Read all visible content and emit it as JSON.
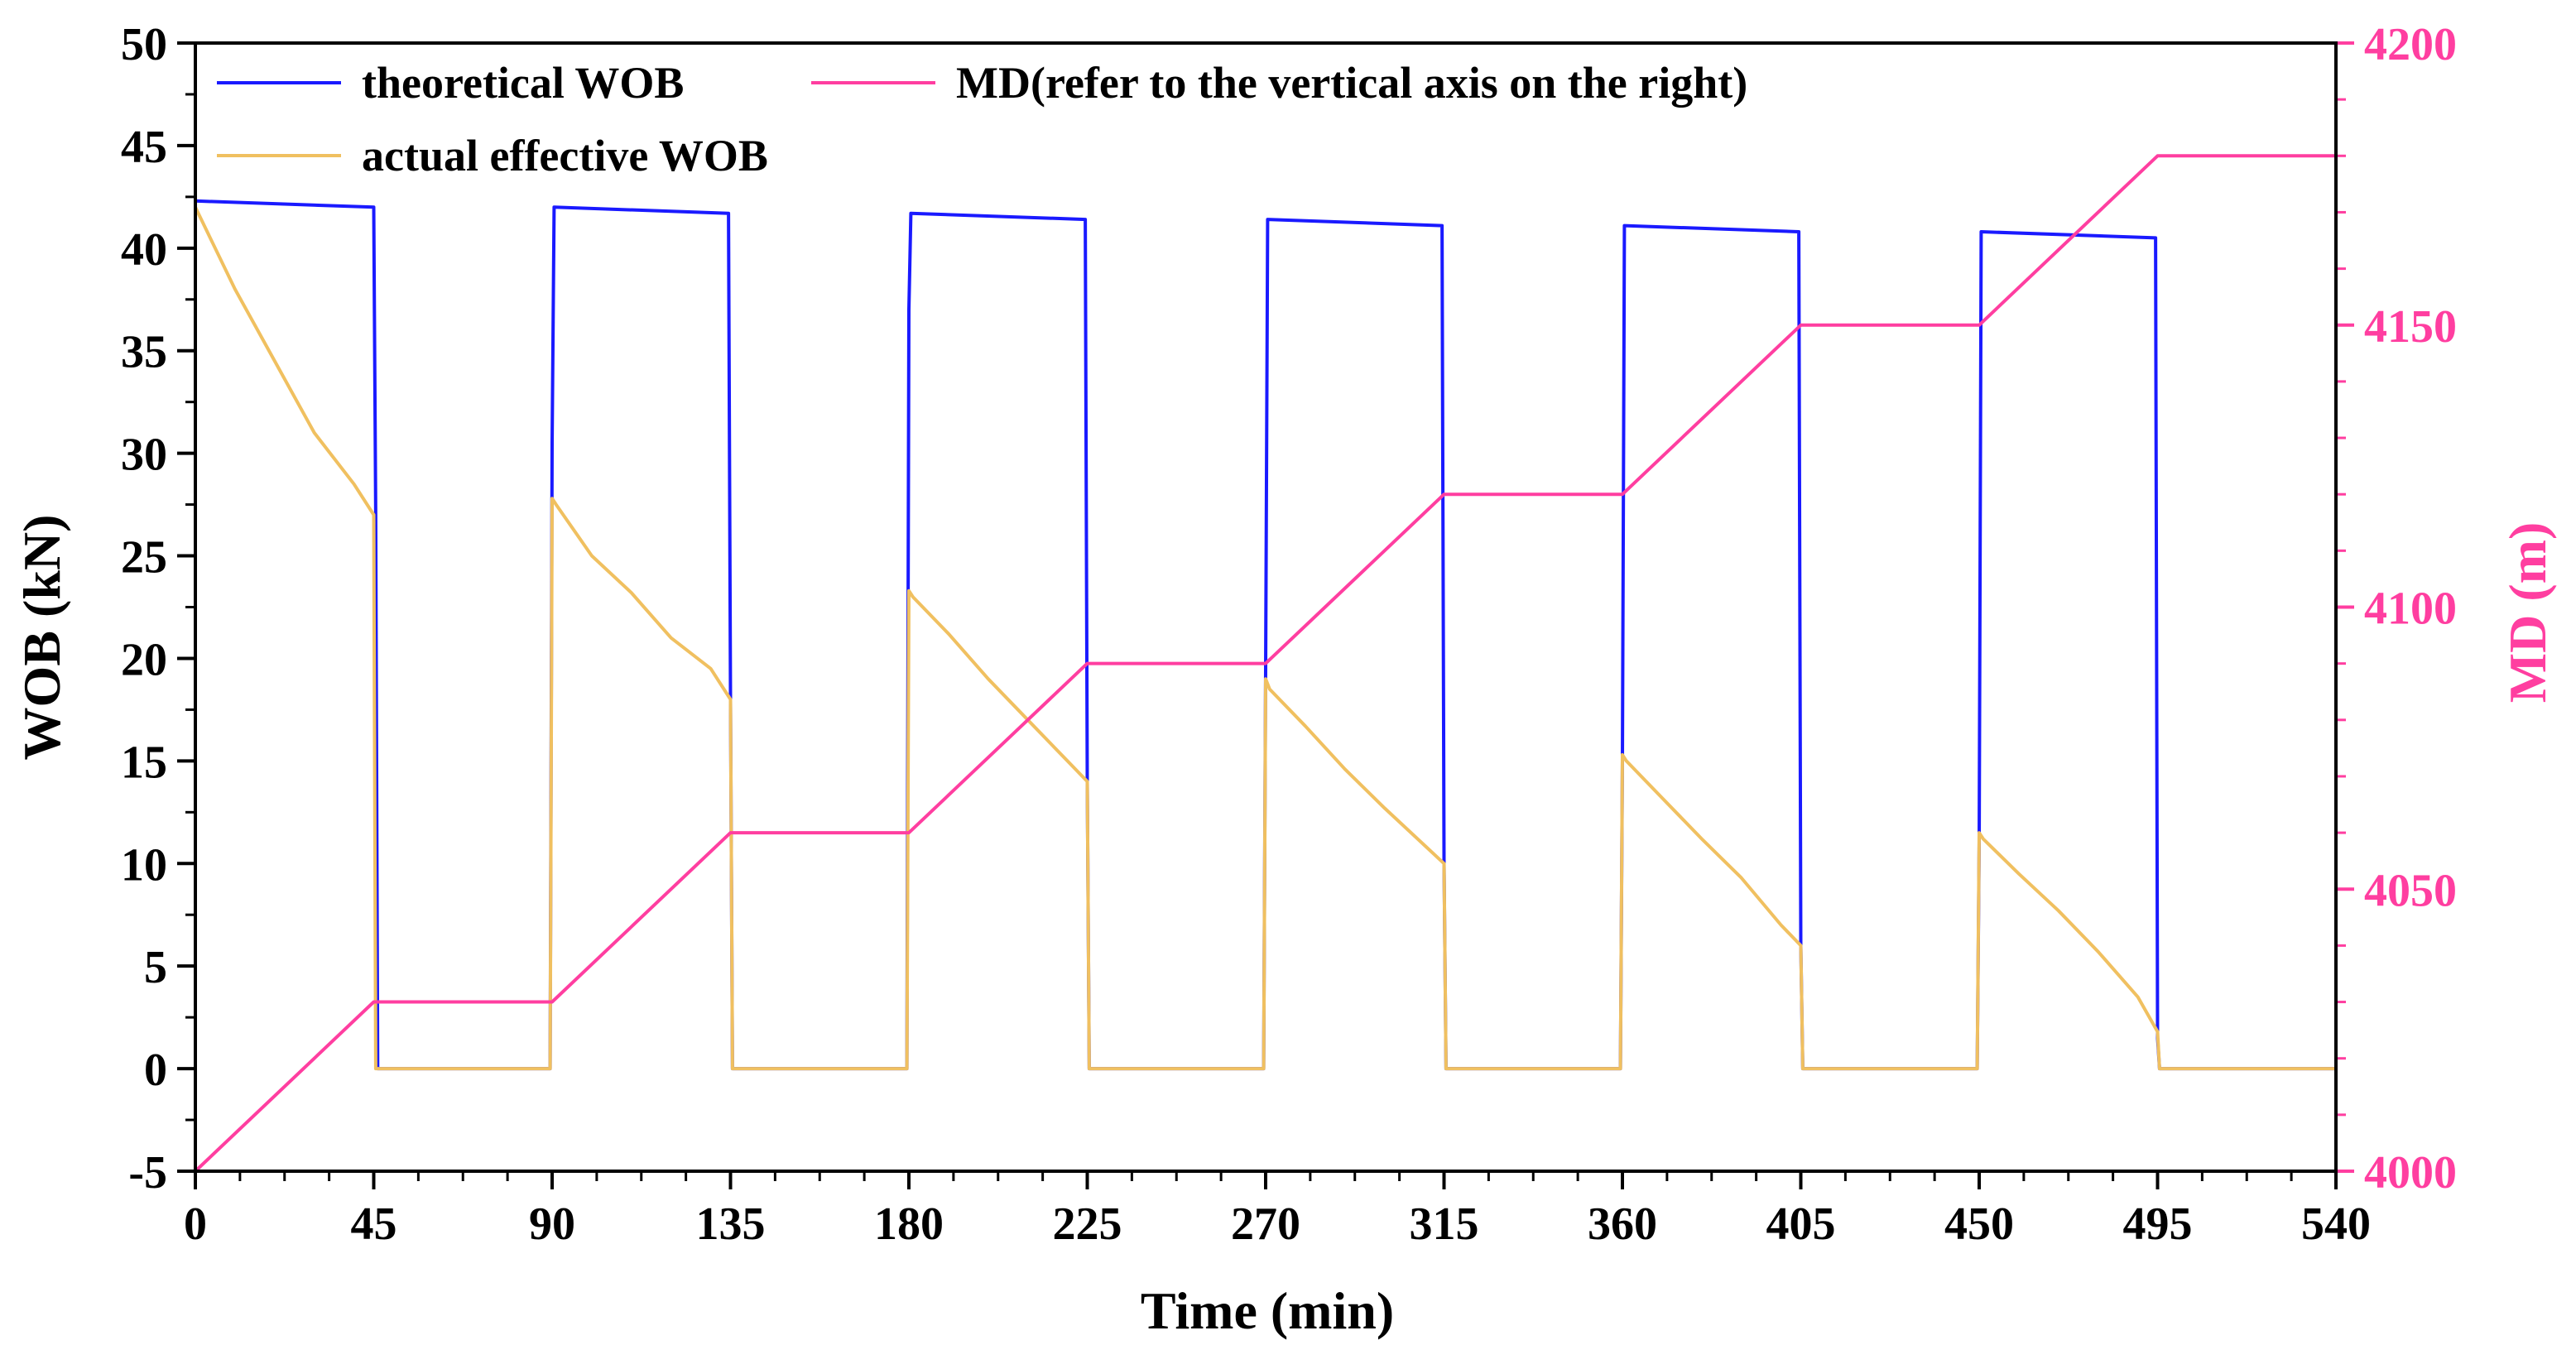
{
  "chart_data": {
    "type": "line",
    "xlabel": "Time (min)",
    "ylabel_left": "WOB (kN)",
    "ylabel_right": "MD (m)",
    "xlim": [
      0,
      540
    ],
    "ylim_left": [
      -5,
      50
    ],
    "ylim_right": [
      4000,
      4200
    ],
    "x_ticks": [
      "0",
      "45",
      "90",
      "135",
      "180",
      "225",
      "270",
      "315",
      "360",
      "405",
      "450",
      "495",
      "540"
    ],
    "y_left_ticks": [
      "-5",
      "0",
      "5",
      "10",
      "15",
      "20",
      "25",
      "30",
      "35",
      "40",
      "45",
      "50"
    ],
    "y_right_ticks": [
      "4000",
      "4050",
      "4100",
      "4150",
      "4200"
    ],
    "legend": {
      "placement": "top-left",
      "entries": [
        {
          "key": "theoretical",
          "label": "theoretical WOB"
        },
        {
          "key": "md",
          "label": "MD(refer to the vertical axis on the right)"
        },
        {
          "key": "actual",
          "label": "actual effective WOB"
        }
      ]
    },
    "series": [
      {
        "key": "theoretical",
        "name": "theoretical WOB",
        "axis": "left",
        "color": "#1a1aff",
        "x": [
          0,
          45,
          45.5,
          46,
          89.5,
          90,
          90.5,
          134.5,
          135,
          135.5,
          179.5,
          180,
          180.5,
          224.5,
          225,
          225.5,
          269.5,
          270,
          270.5,
          314.5,
          315,
          315.5,
          359.5,
          360,
          360.5,
          404.5,
          405,
          405.5,
          449.5,
          450,
          450.5,
          494.5,
          495,
          495.5,
          540
        ],
        "y": [
          42.3,
          42.0,
          27.0,
          0,
          0,
          30.5,
          42.0,
          41.7,
          18.0,
          0,
          0,
          37.0,
          41.7,
          41.4,
          14.0,
          0,
          0,
          19.5,
          41.4,
          41.1,
          10.0,
          0,
          0,
          15.0,
          41.1,
          40.8,
          6.0,
          0,
          0,
          11.0,
          40.8,
          40.5,
          1.5,
          0,
          0
        ]
      },
      {
        "key": "actual",
        "name": "actual effective WOB",
        "axis": "left",
        "color": "#f0c060",
        "x": [
          0,
          10,
          20,
          30,
          40,
          45,
          45.5,
          89.5,
          90,
          91,
          100,
          110,
          120,
          130,
          135,
          135.5,
          179.5,
          180,
          181,
          190,
          200,
          210,
          220,
          225,
          225.5,
          269.5,
          270,
          271,
          280,
          290,
          300,
          310,
          315,
          315.5,
          359.5,
          360,
          361,
          370,
          380,
          390,
          400,
          405,
          405.5,
          449.5,
          450,
          451,
          460,
          470,
          480,
          490,
          495,
          495.5,
          540
        ],
        "y": [
          42.0,
          38.0,
          34.5,
          31.0,
          28.5,
          27.0,
          0,
          0,
          27.8,
          27.5,
          25.0,
          23.2,
          21.0,
          19.5,
          18.0,
          0,
          0,
          23.3,
          23.0,
          21.2,
          19.0,
          17.0,
          15.0,
          14.0,
          0,
          0,
          19.0,
          18.5,
          16.7,
          14.6,
          12.7,
          10.9,
          10.0,
          0,
          0,
          15.3,
          15.0,
          13.2,
          11.2,
          9.3,
          7.0,
          6.0,
          0,
          0,
          11.5,
          11.2,
          9.5,
          7.7,
          5.7,
          3.5,
          1.8,
          0,
          0
        ]
      },
      {
        "key": "md",
        "name": "MD(refer to the vertical axis on the right)",
        "axis": "right",
        "color": "#ff3ea0",
        "x": [
          0,
          45,
          90,
          135,
          180,
          225,
          270,
          315,
          360,
          405,
          450,
          495,
          540
        ],
        "y": [
          4000,
          4030,
          4030,
          4060,
          4060,
          4090,
          4090,
          4120,
          4120,
          4150,
          4150,
          4180,
          4180
        ]
      }
    ]
  }
}
